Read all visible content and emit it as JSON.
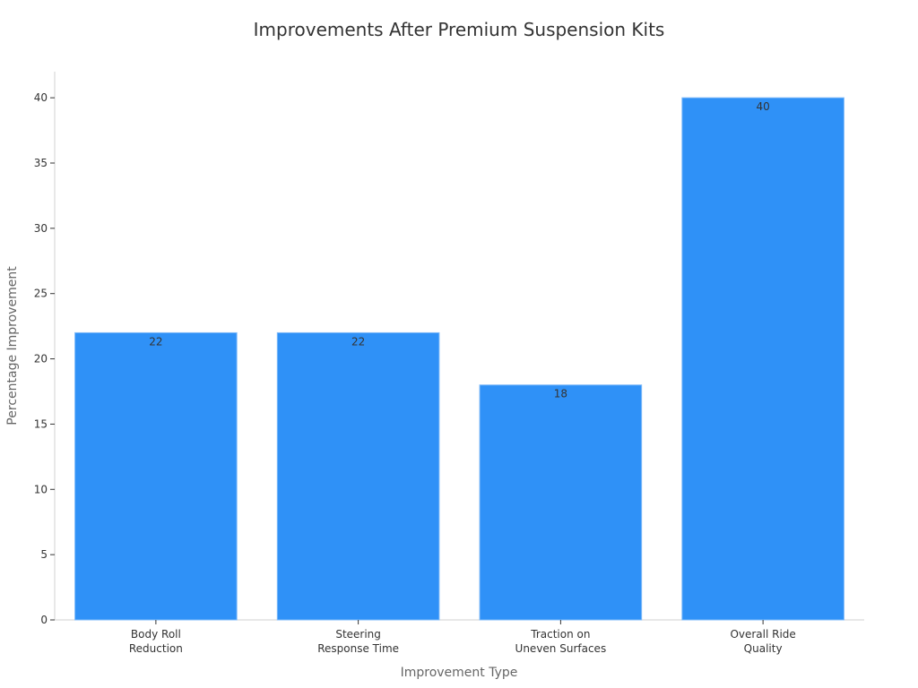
{
  "chart_data": {
    "type": "bar",
    "title": "Improvements After Premium Suspension Kits",
    "xlabel": "Improvement Type",
    "ylabel": "Percentage Improvement",
    "categories": [
      [
        "Body Roll",
        "Reduction"
      ],
      [
        "Steering",
        "Response Time"
      ],
      [
        "Traction on",
        "Uneven Surfaces"
      ],
      [
        "Overall Ride",
        "Quality"
      ]
    ],
    "values": [
      22,
      22,
      18,
      40
    ],
    "ylim": [
      0,
      42
    ],
    "yticks": [
      0,
      5,
      10,
      15,
      20,
      25,
      30,
      35,
      40
    ],
    "grid": false,
    "bar_color": "#2f91f7",
    "bar_edge_color": "#7fbaf9"
  }
}
